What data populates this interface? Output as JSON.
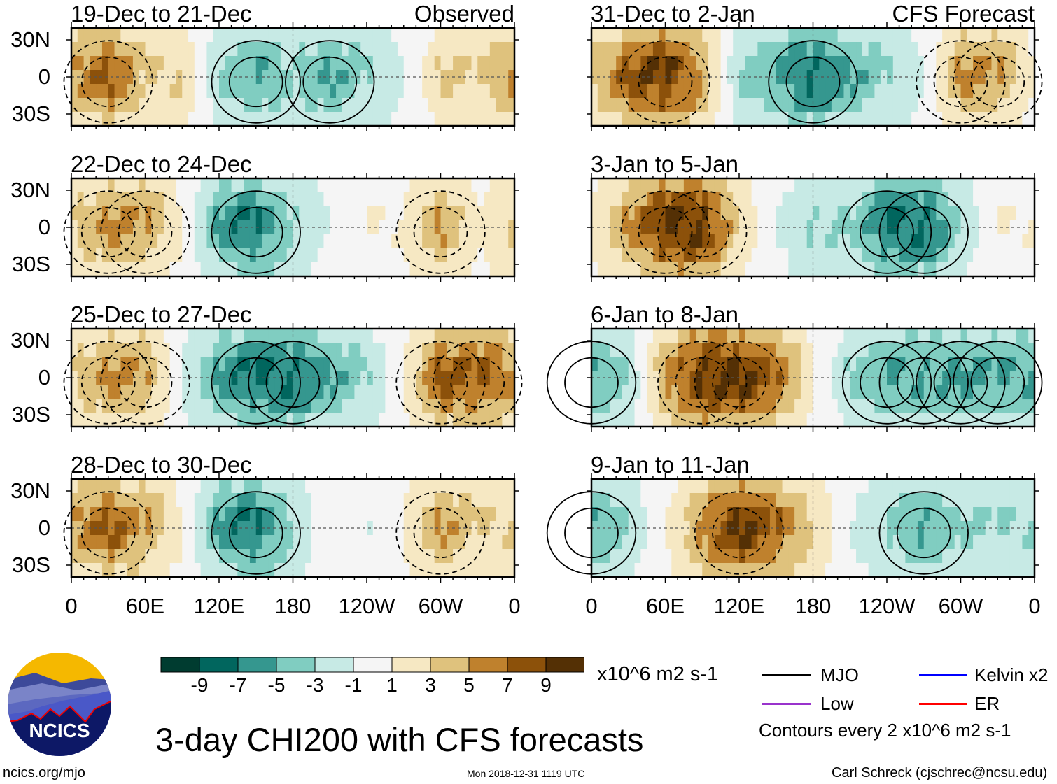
{
  "title": "3-day CHI200 with CFS forecasts",
  "units": "x10^6 m2 s-1",
  "site": "ncics.org/mjo",
  "logo_text": "NCICS",
  "timestamp": "Mon 2018-12-31 1119 UTC",
  "author": "Carl Schreck (cjschrec@ncsu.edu)",
  "column_labels": {
    "observed": "Observed",
    "forecast": "CFS Forecast"
  },
  "lat_labels": [
    "30N",
    "0",
    "30S"
  ],
  "lon_labels": [
    "0",
    "60E",
    "120E",
    "180",
    "120W",
    "60W",
    "0"
  ],
  "colorbar": {
    "labels": [
      "-9",
      "-7",
      "-5",
      "-3",
      "-1",
      "1",
      "3",
      "5",
      "7",
      "9"
    ],
    "colors": [
      "#003c30",
      "#01665e",
      "#35978f",
      "#80cdc1",
      "#c7eae5",
      "#f5f5f5",
      "#f6e8c3",
      "#dfc27d",
      "#bf812d",
      "#8c510a",
      "#543005"
    ]
  },
  "legend": {
    "items": [
      {
        "label": "MJO",
        "color": "#000000"
      },
      {
        "label": "Kelvin x2",
        "color": "#0000ff"
      },
      {
        "label": "Low",
        "color": "#9933cc"
      },
      {
        "label": "ER",
        "color": "#ff0000"
      }
    ],
    "note": "Contours every 2 x10^6 m2 s-1"
  },
  "chart_data": {
    "type": "heatmap",
    "variable": "CHI200 anomaly (x10^6 m2 s-1), approx. equatorial profile vs longitude",
    "lon_deg": [
      0,
      30,
      60,
      90,
      120,
      150,
      180,
      210,
      240,
      270,
      300,
      330,
      360
    ],
    "panels": [
      {
        "title": "19-Dec to 21-Dec",
        "tag": "Observed",
        "values": [
          5,
          7,
          3,
          3,
          -3,
          -5,
          -3,
          -5,
          -3,
          -1,
          3,
          3,
          5
        ]
      },
      {
        "title": "22-Dec to 24-Dec",
        "tag": "",
        "values": [
          3,
          5,
          5,
          1,
          -5,
          -7,
          -3,
          -1,
          1,
          1,
          5,
          1,
          3
        ]
      },
      {
        "title": "25-Dec to 27-Dec",
        "tag": "",
        "values": [
          3,
          5,
          5,
          -1,
          -5,
          -7,
          -7,
          -5,
          -3,
          1,
          7,
          7,
          5
        ]
      },
      {
        "title": "28-Dec to 30-Dec",
        "tag": "",
        "values": [
          5,
          7,
          5,
          1,
          -5,
          -7,
          -3,
          1,
          -1,
          1,
          5,
          3,
          3
        ]
      },
      {
        "title": "31-Dec to 2-Jan",
        "tag": "CFS Forecast",
        "values": [
          3,
          7,
          9,
          5,
          -3,
          -5,
          -7,
          -5,
          -3,
          -1,
          5,
          5,
          1
        ]
      },
      {
        "title": "3-Jan to 5-Jan",
        "tag": "",
        "values": [
          1,
          5,
          9,
          9,
          3,
          -1,
          -3,
          -3,
          -7,
          -7,
          -3,
          1,
          1
        ]
      },
      {
        "title": "6-Jan to 8-Jan",
        "tag": "",
        "values": [
          -5,
          -3,
          5,
          9,
          9,
          7,
          1,
          -3,
          -5,
          -5,
          -5,
          -5,
          -5
        ]
      },
      {
        "title": "9-Jan to 11-Jan",
        "tag": "",
        "values": [
          -5,
          -3,
          1,
          5,
          9,
          7,
          3,
          -1,
          -3,
          -5,
          -3,
          -3,
          -3
        ]
      }
    ]
  }
}
